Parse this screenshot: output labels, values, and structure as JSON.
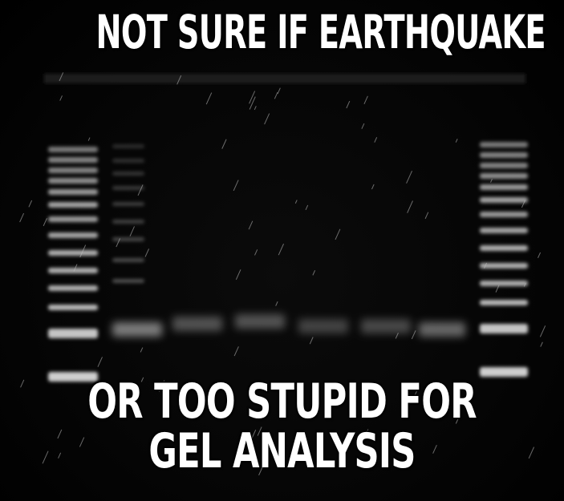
{
  "meme": {
    "top_text": "NOT SURE IF EARTHQUAKE",
    "bottom_lines": [
      "OR TOO STUPID FOR",
      "GEL ANALYSIS"
    ]
  },
  "gel_image": {
    "lane_count": 8,
    "ladder_band_count": 14,
    "band_color": "#d9d9d9",
    "background_color": "#050505"
  }
}
